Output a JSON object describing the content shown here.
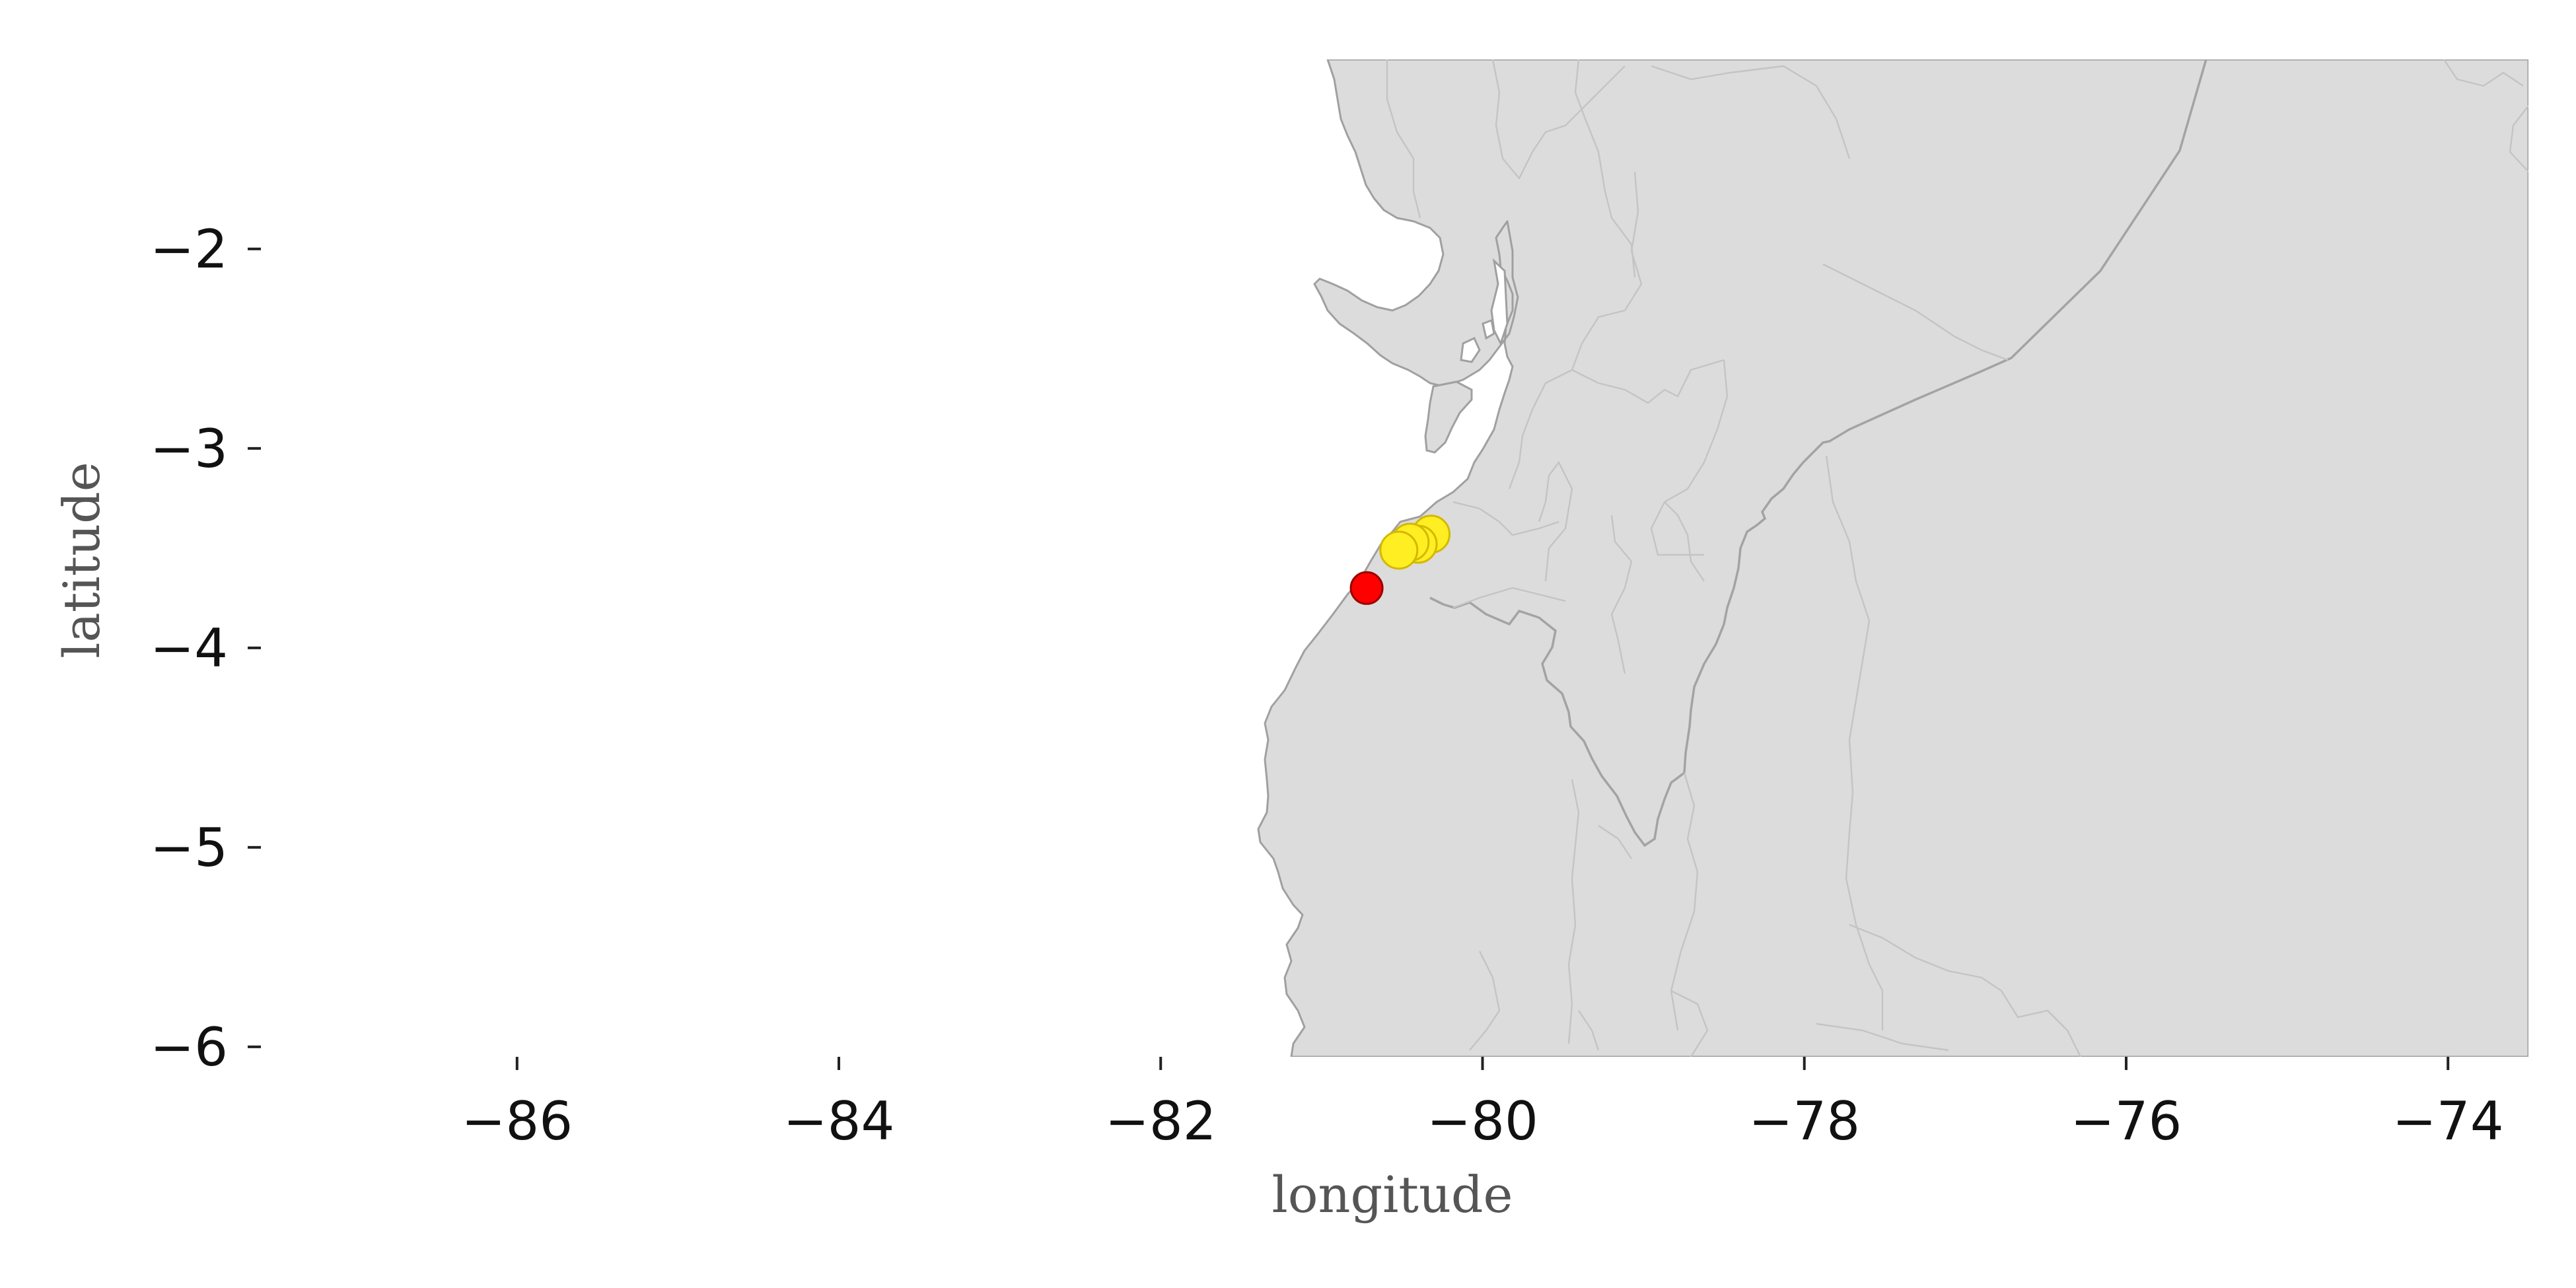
{
  "chart_data": {
    "type": "scatter",
    "xlabel": "longitude",
    "ylabel": "latitude",
    "xlim": [
      -87.6,
      -73.5
    ],
    "ylim": [
      -6.05,
      -1.05
    ],
    "x_ticks": [
      -86,
      -84,
      -82,
      -80,
      -78,
      -76,
      -74
    ],
    "y_ticks": [
      -2,
      -3,
      -4,
      -5,
      -6
    ],
    "x_tick_labels": [
      "−86",
      "−84",
      "−82",
      "−80",
      "−78",
      "−76",
      "−74"
    ],
    "y_tick_labels": [
      "−2",
      "−3",
      "−4",
      "−5",
      "−6"
    ],
    "grid": false,
    "basemap": "coastline and administrative boundaries of Ecuador and northern Peru",
    "series": [
      {
        "color": "#ffee22",
        "points": [
          {
            "lon": -80.32,
            "lat": -3.43
          },
          {
            "lon": -80.4,
            "lat": -3.48
          },
          {
            "lon": -80.45,
            "lat": -3.47
          },
          {
            "lon": -80.52,
            "lat": -3.51
          }
        ]
      },
      {
        "color": "#ff0000",
        "points": [
          {
            "lon": -80.72,
            "lat": -3.7
          }
        ]
      }
    ],
    "colors": {
      "land": "#dcdcdc",
      "coast": "#a0a0a0",
      "yellow_edge": "#d4b800",
      "red_edge": "#9a0000"
    }
  }
}
